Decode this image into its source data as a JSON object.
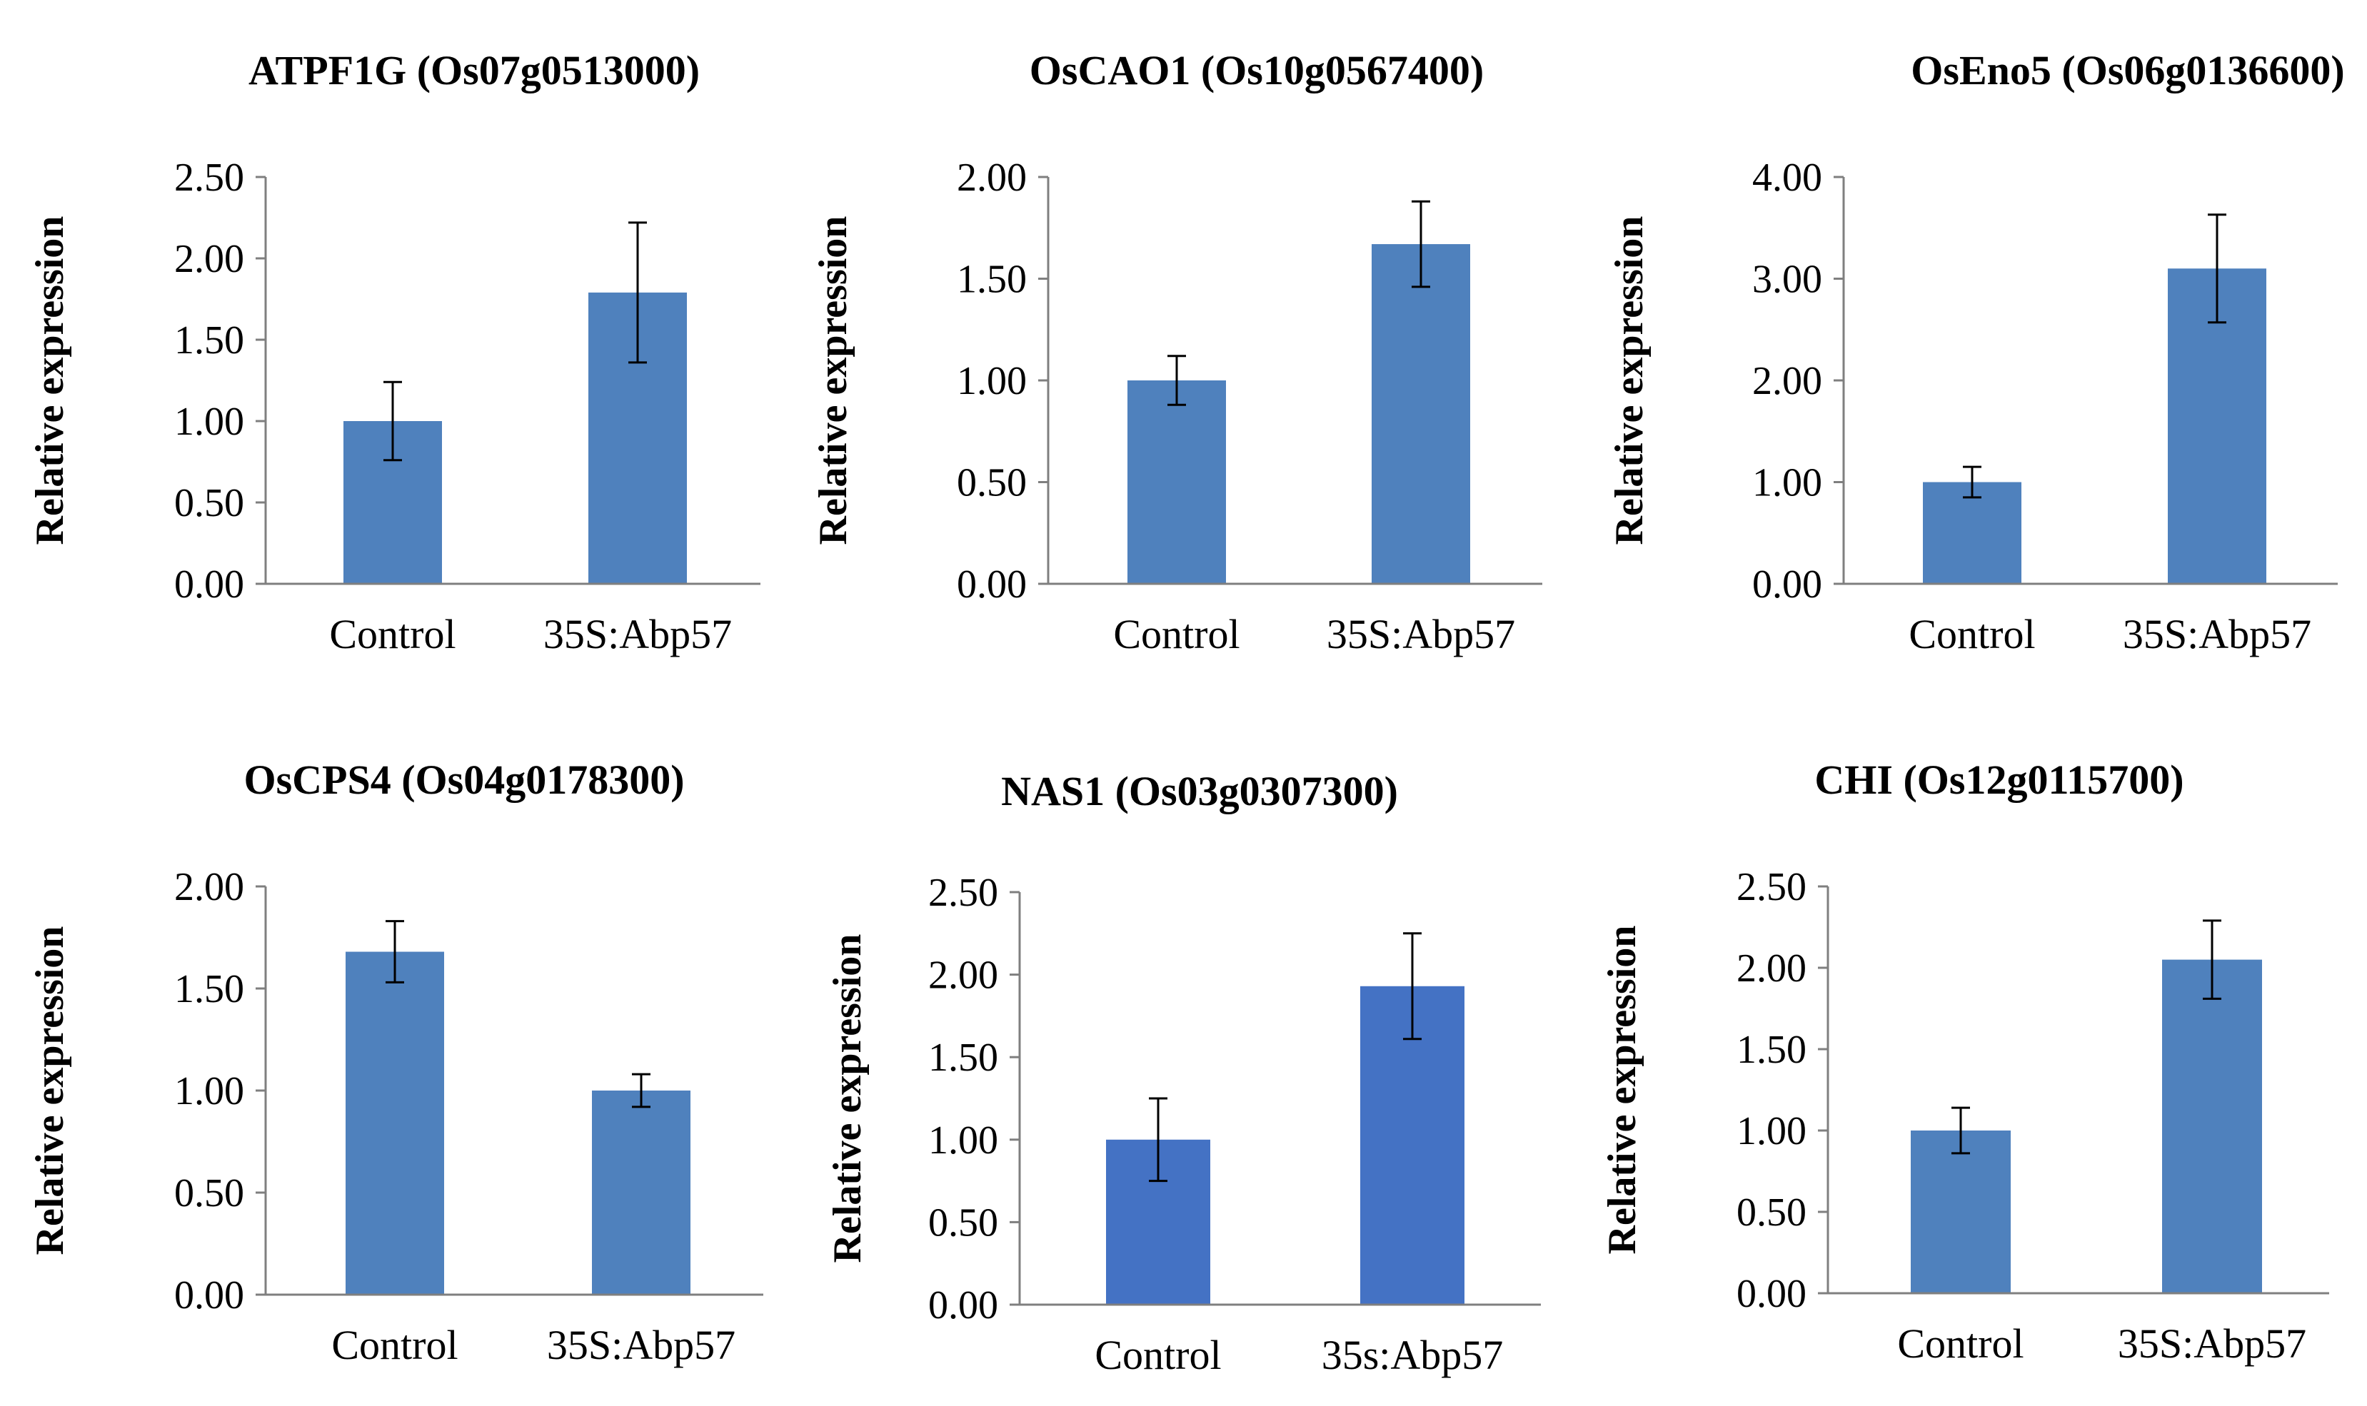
{
  "chart_data": [
    {
      "type": "bar",
      "title": "ATPF1G (Os07g0513000)",
      "xlabel": "",
      "ylabel": "Relative expression",
      "categories": [
        "Control",
        "35S:Abp57"
      ],
      "values": [
        1.0,
        1.79
      ],
      "errors": [
        0.24,
        0.43
      ],
      "ylim": [
        0,
        2.5
      ],
      "yticks": [
        "0.00",
        "0.50",
        "1.00",
        "1.50",
        "2.00",
        "2.50"
      ],
      "bar_color": "#4f81bd"
    },
    {
      "type": "bar",
      "title": "OsCAO1 (Os10g0567400)",
      "xlabel": "",
      "ylabel": "Relative expression",
      "categories": [
        "Control",
        "35S:Abp57"
      ],
      "values": [
        1.0,
        1.67
      ],
      "errors": [
        0.12,
        0.21
      ],
      "ylim": [
        0,
        2.0
      ],
      "yticks": [
        "0.00",
        "0.50",
        "1.00",
        "1.50",
        "2.00"
      ],
      "bar_color": "#4f81bd"
    },
    {
      "type": "bar",
      "title": "OsEno5 (Os06g0136600)",
      "xlabel": "",
      "ylabel": "Relative expression",
      "categories": [
        "Control",
        "35S:Abp57"
      ],
      "values": [
        1.0,
        3.1
      ],
      "errors": [
        0.15,
        0.53
      ],
      "ylim": [
        0,
        4.0
      ],
      "yticks": [
        "0.00",
        "1.00",
        "2.00",
        "3.00",
        "4.00"
      ],
      "bar_color": "#4f81bd"
    },
    {
      "type": "bar",
      "title": "OsCPS4 (Os04g0178300)",
      "xlabel": "",
      "ylabel": "Relative expression",
      "categories": [
        "Control",
        "35S:Abp57"
      ],
      "values": [
        1.68,
        1.0
      ],
      "errors": [
        0.15,
        0.08
      ],
      "ylim": [
        0,
        2.0
      ],
      "yticks": [
        "0.00",
        "0.50",
        "1.00",
        "1.50",
        "2.00"
      ],
      "bar_color": "#4f81bd"
    },
    {
      "type": "bar",
      "title": "NAS1 (Os03g0307300)",
      "xlabel": "",
      "ylabel": "Relative expression",
      "categories": [
        "Control",
        "35s:Abp57"
      ],
      "values": [
        1.0,
        1.93
      ],
      "errors": [
        0.25,
        0.32
      ],
      "ylim": [
        0,
        2.5
      ],
      "yticks": [
        "0.00",
        "0.50",
        "1.00",
        "1.50",
        "2.00",
        "2.50"
      ],
      "bar_color": "#4472c4"
    },
    {
      "type": "bar",
      "title": "CHI (Os12g0115700)",
      "xlabel": "",
      "ylabel": "Relative expression",
      "categories": [
        "Control",
        "35S:Abp57"
      ],
      "values": [
        1.0,
        2.05
      ],
      "errors": [
        0.14,
        0.24
      ],
      "ylim": [
        0,
        2.5
      ],
      "yticks": [
        "0.00",
        "0.50",
        "1.00",
        "1.50",
        "2.00",
        "2.50"
      ],
      "bar_color": "#4f81bd"
    }
  ]
}
